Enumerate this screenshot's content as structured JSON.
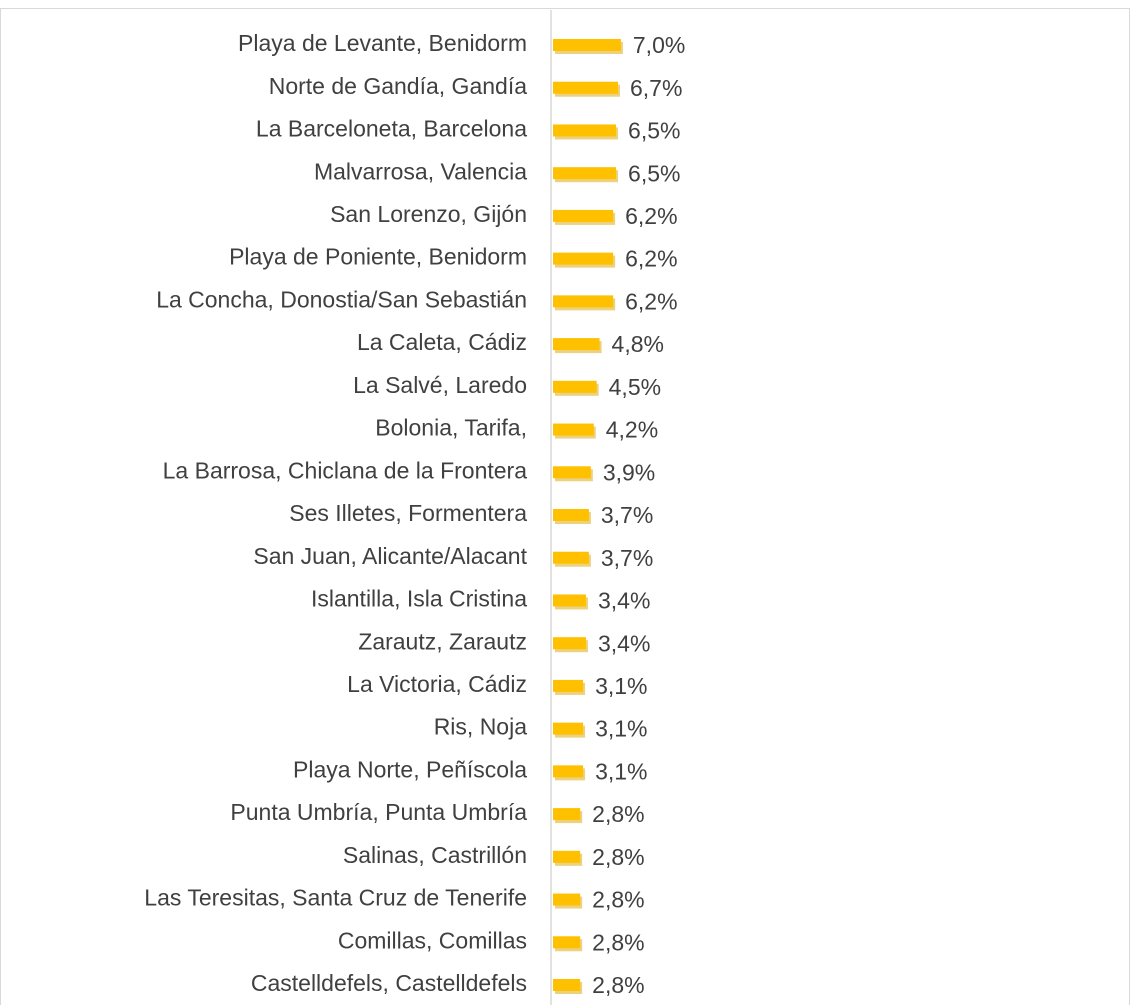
{
  "chart_data": {
    "type": "bar",
    "orientation": "horizontal",
    "color": "#FFC000",
    "categories": [
      "Playa de Levante, Benidorm",
      "Norte de Gandía, Gandía",
      "La Barceloneta, Barcelona",
      "Malvarrosa, Valencia",
      "San Lorenzo, Gijón",
      "Playa de Poniente, Benidorm",
      "La Concha, Donostia/San Sebastián",
      "La Caleta, Cádiz",
      "La Salvé, Laredo",
      "Bolonia, Tarifa,",
      "La Barrosa, Chiclana de la Frontera",
      "Ses Illetes, Formentera",
      "San Juan, Alicante/Alacant",
      "Islantilla, Isla Cristina",
      "Zarautz, Zarautz",
      "La Victoria, Cádiz",
      "Ris, Noja",
      "Playa Norte, Peñíscola",
      "Punta Umbría, Punta Umbría",
      "Salinas, Castrillón",
      "Las Teresitas, Santa Cruz de Tenerife",
      "Comillas, Comillas",
      "Castelldefels, Castelldefels"
    ],
    "values": [
      7.0,
      6.7,
      6.5,
      6.5,
      6.2,
      6.2,
      6.2,
      4.8,
      4.5,
      4.2,
      3.9,
      3.7,
      3.7,
      3.4,
      3.4,
      3.1,
      3.1,
      3.1,
      2.8,
      2.8,
      2.8,
      2.8,
      2.8
    ],
    "value_labels": [
      "7,0%",
      "6,7%",
      "6,5%",
      "6,5%",
      "6,2%",
      "6,2%",
      "6,2%",
      "4,8%",
      "4,5%",
      "4,2%",
      "3,9%",
      "3,7%",
      "3,7%",
      "3,4%",
      "3,4%",
      "3,1%",
      "3,1%",
      "3,1%",
      "2,8%",
      "2,8%",
      "2,8%",
      "2,8%",
      "2,8%"
    ]
  }
}
